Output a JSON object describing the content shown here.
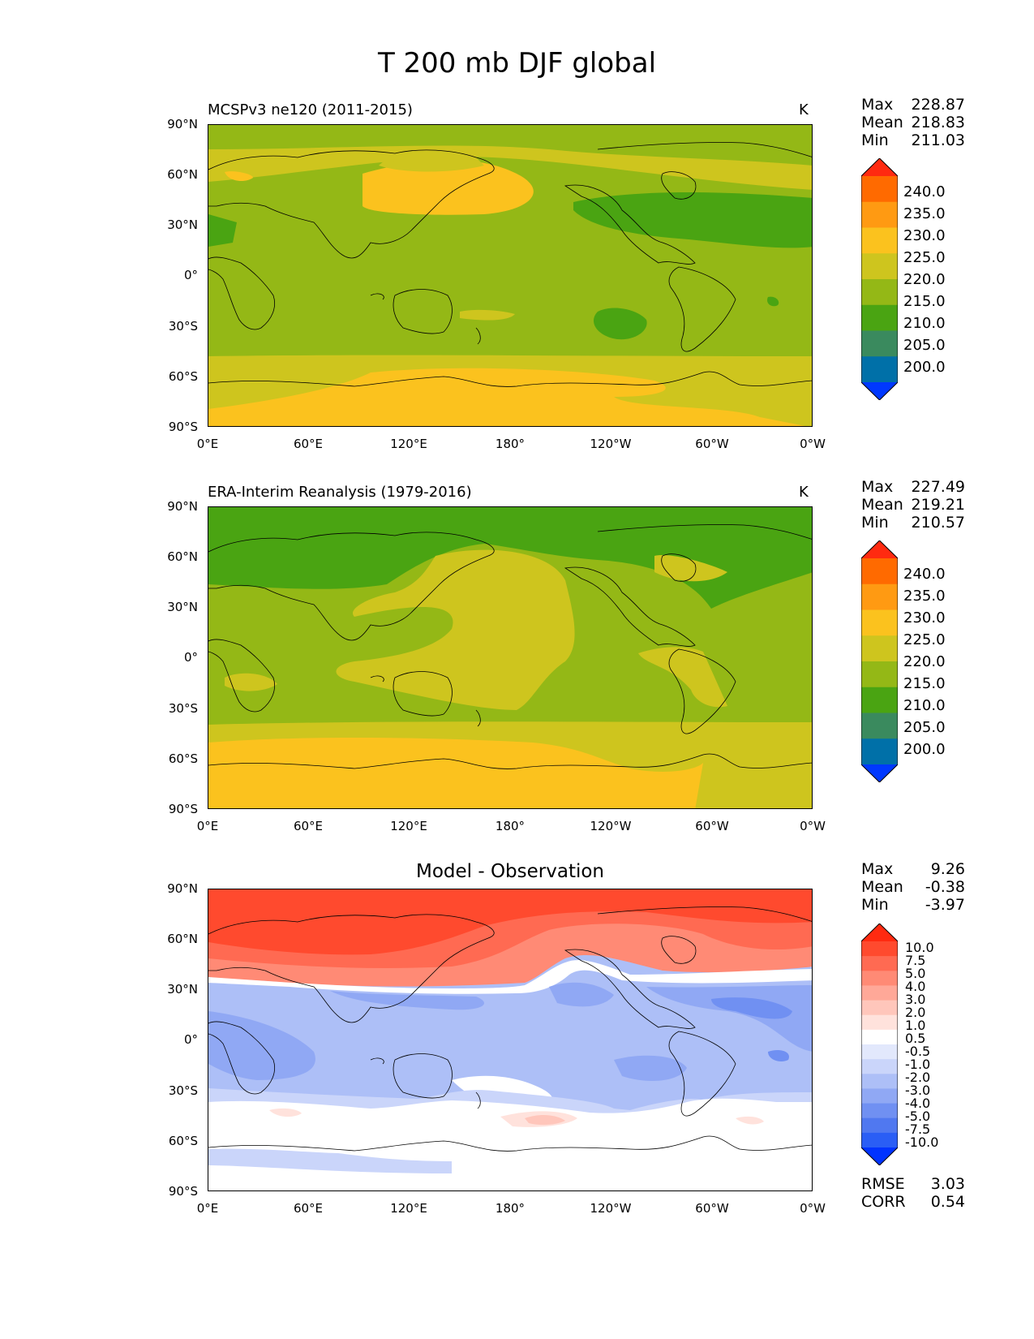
{
  "title": "T 200 mb DJF global",
  "colors": {
    "abs": [
      "#0038ff",
      "#0070a8",
      "#3a8a5e",
      "#4aa412",
      "#94b816",
      "#cec51e",
      "#fbc21e",
      "#ff9a12",
      "#ff6a00",
      "#ff2a10"
    ],
    "diff": [
      "#0033ff",
      "#2a5ef5",
      "#5078f0",
      "#7090f2",
      "#90a8f4",
      "#adbff7",
      "#cad5fa",
      "#e2e8fc",
      "#ffffff",
      "#ffe2dc",
      "#ffc6bb",
      "#ffa898",
      "#ff8a75",
      "#ff6a52",
      "#ff4a2e",
      "#ff2a10"
    ]
  },
  "lat_ticks": [
    "90°N",
    "60°N",
    "30°N",
    "0°",
    "30°S",
    "60°S",
    "90°S"
  ],
  "lon_ticks": [
    "0°E",
    "60°E",
    "120°E",
    "180°",
    "120°W",
    "60°W",
    "0°W"
  ],
  "panels": [
    {
      "title": "MCSPv3 ne120 (2011-2015)",
      "units": "K",
      "stats": [
        {
          "label": "Max",
          "value": "228.87"
        },
        {
          "label": "Mean",
          "value": "218.83"
        },
        {
          "label": "Min",
          "value": "211.03"
        }
      ],
      "colorbar": [
        "240.0",
        "235.0",
        "230.0",
        "225.0",
        "220.0",
        "215.0",
        "210.0",
        "205.0",
        "200.0"
      ]
    },
    {
      "title": "ERA-Interim Reanalysis (1979-2016)",
      "units": "K",
      "stats": [
        {
          "label": "Max",
          "value": "227.49"
        },
        {
          "label": "Mean",
          "value": "219.21"
        },
        {
          "label": "Min",
          "value": "210.57"
        }
      ],
      "colorbar": [
        "240.0",
        "235.0",
        "230.0",
        "225.0",
        "220.0",
        "215.0",
        "210.0",
        "205.0",
        "200.0"
      ]
    },
    {
      "title": "Model - Observation",
      "stats": [
        {
          "label": "Max",
          "value": "9.26"
        },
        {
          "label": "Mean",
          "value": "-0.38"
        },
        {
          "label": "Min",
          "value": "-3.97"
        }
      ],
      "colorbar": [
        "10.0",
        "7.5",
        "5.0",
        "4.0",
        "3.0",
        "2.0",
        "1.0",
        "0.5",
        "-0.5",
        "-1.0",
        "-2.0",
        "-3.0",
        "-4.0",
        "-5.0",
        "-7.5",
        "-10.0"
      ],
      "metrics": [
        {
          "label": "RMSE",
          "value": "3.03"
        },
        {
          "label": "CORR",
          "value": "0.54"
        }
      ]
    }
  ]
}
